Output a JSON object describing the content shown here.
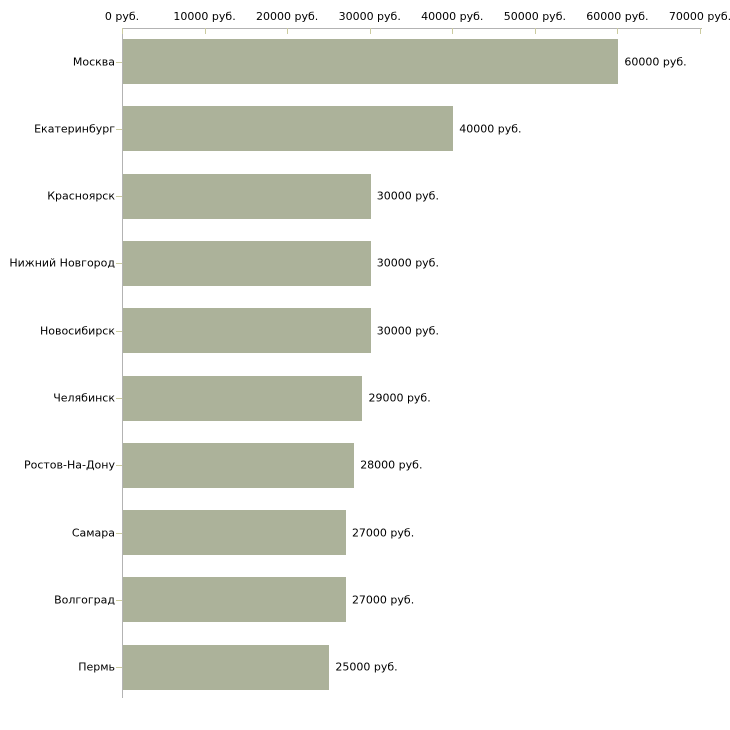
{
  "chart_data": {
    "type": "bar",
    "orientation": "horizontal",
    "unit": "руб.",
    "grid": "off",
    "legend": "none",
    "categories": [
      "Москва",
      "Екатеринбург",
      "Красноярск",
      "Нижний Новгород",
      "Новосибирск",
      "Челябинск",
      "Ростов-На-Дону",
      "Самара",
      "Волгоград",
      "Пермь"
    ],
    "values": [
      60000,
      40000,
      30000,
      30000,
      30000,
      29000,
      28000,
      27000,
      27000,
      25000
    ],
    "value_labels": [
      "60000 руб.",
      "40000 руб.",
      "30000 руб.",
      "30000 руб.",
      "30000 руб.",
      "29000 руб.",
      "28000 руб.",
      "27000 руб.",
      "27000 руб.",
      "25000 руб."
    ],
    "x_ticks": [
      0,
      10000,
      20000,
      30000,
      40000,
      50000,
      60000,
      70000
    ],
    "x_tick_labels": [
      "0 руб.",
      "10000 руб.",
      "20000 руб.",
      "30000 руб.",
      "40000 руб.",
      "50000 руб.",
      "60000 руб.",
      "70000 руб."
    ],
    "xlim": [
      0,
      70000
    ],
    "colors": {
      "bar_fill": "#acb29a",
      "axis_line": "#b3b3b3",
      "tick_mark": "#cbcb9f",
      "text": "#000000",
      "background": "#ffffff"
    }
  }
}
